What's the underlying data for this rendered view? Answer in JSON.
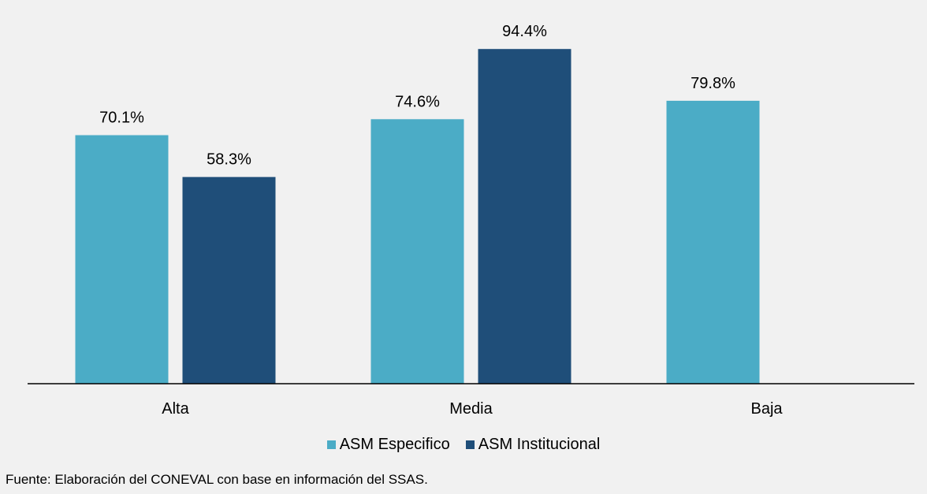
{
  "chart_data": {
    "type": "bar",
    "categories": [
      "Alta",
      "Media",
      "Baja"
    ],
    "series": [
      {
        "name": "ASM Especifico",
        "color": "#4bacc6",
        "values": [
          70.1,
          74.6,
          79.8
        ],
        "labels": [
          "70.1%",
          "74.6%",
          "79.8%"
        ]
      },
      {
        "name": "ASM Institucional",
        "color": "#1f4e79",
        "values": [
          58.3,
          94.4,
          null
        ],
        "labels": [
          "58.3%",
          "94.4%",
          null
        ]
      }
    ],
    "ylim": [
      0,
      100
    ],
    "grid": false,
    "legend_position": "bottom"
  },
  "source_note": "Fuente: Elaboración del CONEVAL con base en información del SSAS."
}
